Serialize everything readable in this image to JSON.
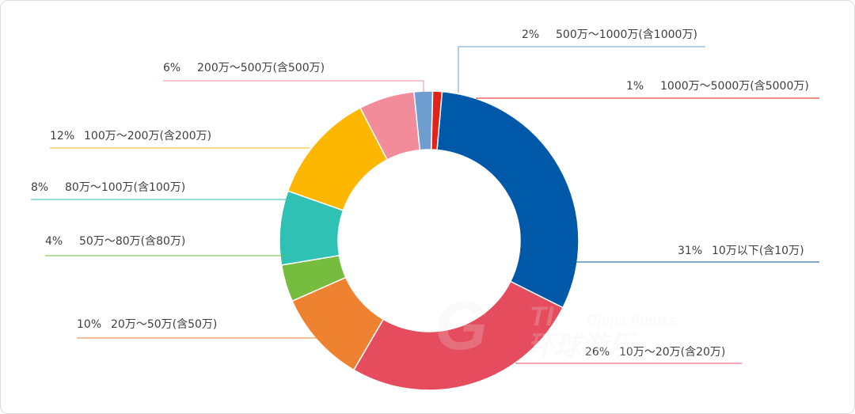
{
  "chart_data": {
    "type": "pie",
    "style": "donut",
    "title": "",
    "slices": [
      {
        "percent_label": "31%",
        "category": "10万以下(含10万)",
        "value": 31,
        "color": "#0058A9"
      },
      {
        "percent_label": "26%",
        "category": "10万～20万(含20万)",
        "value": 26,
        "color": "#E54D5F"
      },
      {
        "percent_label": "10%",
        "category": "20万～50万(含50万)",
        "value": 10,
        "color": "#EF8230"
      },
      {
        "percent_label": "4%",
        "category": "50万～80万(含80万)",
        "value": 4,
        "color": "#76BC3E"
      },
      {
        "percent_label": "8%",
        "category": "80万～100万(含100万)",
        "value": 8,
        "color": "#2FC1B4"
      },
      {
        "percent_label": "12%",
        "category": "100万～200万(含200万)",
        "value": 12,
        "color": "#FDB700"
      },
      {
        "percent_label": "6%",
        "category": "200万～500万(含500万)",
        "value": 6,
        "color": "#F28C9A"
      },
      {
        "percent_label": "2%",
        "category": "500万～1000万(含1000万)",
        "value": 2,
        "color": "#6E9ECF"
      },
      {
        "percent_label": "1%",
        "category": "1000万～5000万(含5000万)",
        "value": 1,
        "color": "#E1231A"
      }
    ]
  },
  "watermark": {
    "main": "TI",
    "sub": "China Amuse",
    "brand": "环球游乐"
  }
}
